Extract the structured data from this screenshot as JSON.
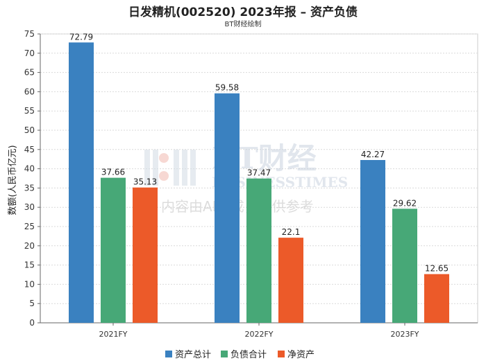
{
  "chart_data": {
    "type": "bar",
    "title": "日发精机(002520) 2023年报 – 资产负债",
    "subtitle": "BT财经绘制",
    "ylabel": "数额(人民币亿元)",
    "xlabel": "",
    "ylim": [
      0,
      75
    ],
    "yticks": [
      0,
      5,
      10,
      15,
      20,
      25,
      30,
      35,
      40,
      45,
      50,
      55,
      60,
      65,
      70,
      75
    ],
    "grid": true,
    "legend_position": "bottom",
    "categories": [
      "2021FY",
      "2022FY",
      "2023FY"
    ],
    "series": [
      {
        "name": "资产总计",
        "color": "#3a81c0",
        "values": [
          72.79,
          59.58,
          42.27
        ],
        "labels": [
          "72.79",
          "59.58",
          "42.27"
        ]
      },
      {
        "name": "负债合计",
        "color": "#47a877",
        "values": [
          37.66,
          37.47,
          29.62
        ],
        "labels": [
          "37.66",
          "37.47",
          "29.62"
        ]
      },
      {
        "name": "净资产",
        "color": "#ec5a29",
        "values": [
          35.13,
          22.1,
          12.65
        ],
        "labels": [
          "35.13",
          "22.1",
          "12.65"
        ]
      }
    ]
  },
  "watermark": {
    "brand": "BT财经",
    "brand_en": "BUSINESSTIMES",
    "note": "内容由AI生成，仅供参考"
  }
}
